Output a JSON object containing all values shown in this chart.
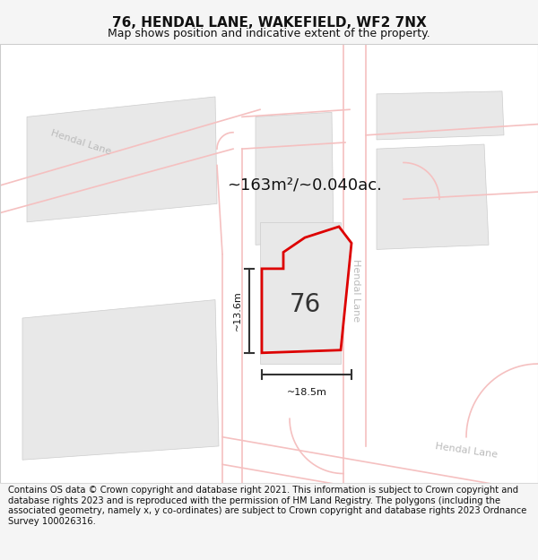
{
  "title": "76, HENDAL LANE, WAKEFIELD, WF2 7NX",
  "subtitle": "Map shows position and indicative extent of the property.",
  "footer": "Contains OS data © Crown copyright and database right 2021. This information is subject to Crown copyright and database rights 2023 and is reproduced with the permission of HM Land Registry. The polygons (including the associated geometry, namely x, y co-ordinates) are subject to Crown copyright and database rights 2023 Ordnance Survey 100026316.",
  "area_label": "~163m²/~0.040ac.",
  "property_number": "76",
  "dim_width": "~18.5m",
  "dim_height": "~13.6m",
  "road_label_topleft": "Hendal Lane",
  "road_label_right": "Hendal Lane",
  "road_label_bottomright": "Hendal Lane",
  "bg_color": "#f5f5f5",
  "map_bg": "#ffffff",
  "road_color": "#f5c0c0",
  "block_color": "#e0e0e0",
  "property_outline_color": "#dd0000",
  "dim_line_color": "#333333",
  "title_fontsize": 11,
  "subtitle_fontsize": 9,
  "footer_fontsize": 7.2
}
